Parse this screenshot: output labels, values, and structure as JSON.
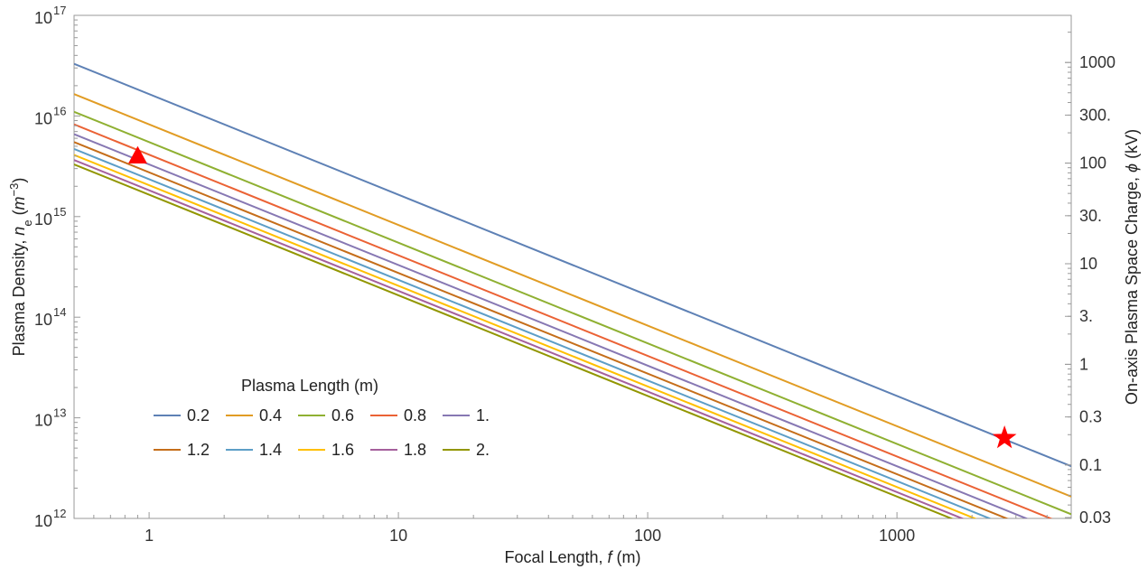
{
  "chart_data": {
    "type": "line",
    "scale": {
      "x": "log",
      "y_left": "log",
      "y_right": "log"
    },
    "xlabel_parts": [
      "Focal Length, ",
      "f",
      " (m)"
    ],
    "ylabel_parts": [
      "Plasma Density, ",
      "n",
      "e",
      " (",
      "m",
      "−3",
      ")"
    ],
    "y2label_parts": [
      "On-axis Plasma Space Charge, ",
      "ϕ",
      " (kV)"
    ],
    "xlim": [
      0.5,
      5000
    ],
    "ylim": [
      1000000000000.0,
      1e+17
    ],
    "x_ticks": [
      {
        "value": 1,
        "label": "1"
      },
      {
        "value": 10,
        "label": "10"
      },
      {
        "value": 100,
        "label": "100"
      },
      {
        "value": 1000,
        "label": "1000"
      }
    ],
    "y_ticks": [
      {
        "value": 1000000000000.0,
        "mantissa": "10",
        "exponent": "12"
      },
      {
        "value": 10000000000000.0,
        "mantissa": "10",
        "exponent": "13"
      },
      {
        "value": 100000000000000.0,
        "mantissa": "10",
        "exponent": "14"
      },
      {
        "value": 1000000000000000.0,
        "mantissa": "10",
        "exponent": "15"
      },
      {
        "value": 1e+16,
        "mantissa": "10",
        "exponent": "16"
      },
      {
        "value": 1e+17,
        "mantissa": "10",
        "exponent": "17"
      }
    ],
    "y2_ticks": [
      {
        "value": 1000,
        "label": "1000"
      },
      {
        "value": 300,
        "label": "300."
      },
      {
        "value": 100,
        "label": "100"
      },
      {
        "value": 30,
        "label": "30."
      },
      {
        "value": 10,
        "label": "10"
      },
      {
        "value": 3,
        "label": "3."
      },
      {
        "value": 1,
        "label": "1"
      },
      {
        "value": 0.3,
        "label": "0.3"
      },
      {
        "value": 0.1,
        "label": "0.1"
      },
      {
        "value": 0.03,
        "label": "0.03"
      }
    ],
    "y2_reference": {
      "y_value": 340000000000000.0,
      "phi_value": 10
    },
    "legend": {
      "title": "Plasma Length (m)",
      "placement": "lower-left",
      "columns": 5
    },
    "series": [
      {
        "name": "0.2",
        "color": "#5E81B5",
        "x": [
          0.5,
          5000
        ],
        "y": [
          3.3e+16,
          3300000000000.0
        ]
      },
      {
        "name": "0.4",
        "color": "#E19C24",
        "x": [
          0.5,
          5000
        ],
        "y": [
          1.65e+16,
          1650000000000.0
        ]
      },
      {
        "name": "0.6",
        "color": "#8FB032",
        "x": [
          0.5,
          5000
        ],
        "y": [
          1.1e+16,
          1100000000000.0
        ]
      },
      {
        "name": "0.8",
        "color": "#EB6235",
        "x": [
          0.5,
          5000
        ],
        "y": [
          8250000000000000.0,
          825000000000.0
        ]
      },
      {
        "name": "1.",
        "color": "#8778B3",
        "x": [
          0.5,
          5000
        ],
        "y": [
          6600000000000000.0,
          660000000000.0
        ]
      },
      {
        "name": "1.2",
        "color": "#C56E1A",
        "x": [
          0.5,
          5000
        ],
        "y": [
          5500000000000000.0,
          550000000000.0
        ]
      },
      {
        "name": "1.4",
        "color": "#5D9EC7",
        "x": [
          0.5,
          5000
        ],
        "y": [
          4700000000000000.0,
          470000000000.0
        ]
      },
      {
        "name": "1.6",
        "color": "#FFBF00",
        "x": [
          0.5,
          5000
        ],
        "y": [
          4100000000000000.0,
          410000000000.0
        ]
      },
      {
        "name": "1.8",
        "color": "#A5609D",
        "x": [
          0.5,
          5000
        ],
        "y": [
          3650000000000000.0,
          365000000000.0
        ]
      },
      {
        "name": "2.",
        "color": "#929600",
        "x": [
          0.5,
          5000
        ],
        "y": [
          3300000000000000.0,
          330000000000.0
        ]
      }
    ],
    "markers": [
      {
        "shape": "triangle",
        "color": "#FF0000",
        "x": 0.9,
        "y": 4000000000000000.0
      },
      {
        "shape": "star",
        "color": "#FF0000",
        "x": 2700,
        "y": 6300000000000.0
      }
    ],
    "grid": false
  }
}
